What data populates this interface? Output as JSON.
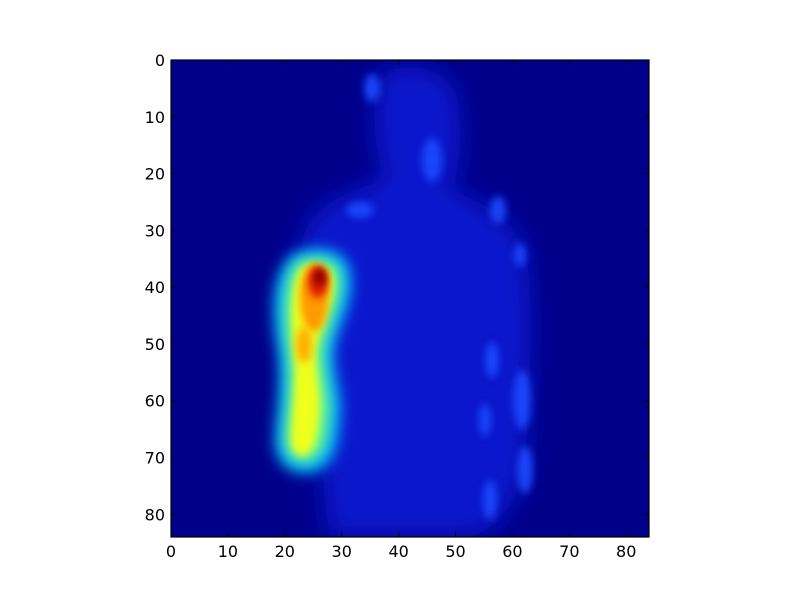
{
  "chart_data": {
    "type": "heatmap",
    "title": "",
    "xlabel": "",
    "ylabel": "",
    "colormap": "jet",
    "colors": {
      "background": "#00008b",
      "axis": "#000000",
      "figure_bg": "#ffffff"
    },
    "xlim": [
      0,
      84
    ],
    "ylim": [
      84,
      0
    ],
    "x_ticks": [
      "0",
      "10",
      "20",
      "30",
      "40",
      "50",
      "60",
      "70",
      "80"
    ],
    "y_ticks": [
      "0",
      "10",
      "20",
      "30",
      "40",
      "50",
      "60",
      "70",
      "80"
    ],
    "grid": false,
    "legend": "none",
    "hotspot": {
      "peak": {
        "x": 26,
        "y": 38,
        "value": 1.0
      },
      "ridge": [
        {
          "x": 26,
          "y": 37,
          "value": 0.95
        },
        {
          "x": 24,
          "y": 43,
          "value": 0.75
        },
        {
          "x": 22,
          "y": 50,
          "value": 0.7
        },
        {
          "x": 23,
          "y": 57,
          "value": 0.62
        },
        {
          "x": 24,
          "y": 62,
          "value": 0.66
        },
        {
          "x": 22,
          "y": 68,
          "value": 0.6
        }
      ]
    },
    "silhouette_intensity": 0.18
  }
}
